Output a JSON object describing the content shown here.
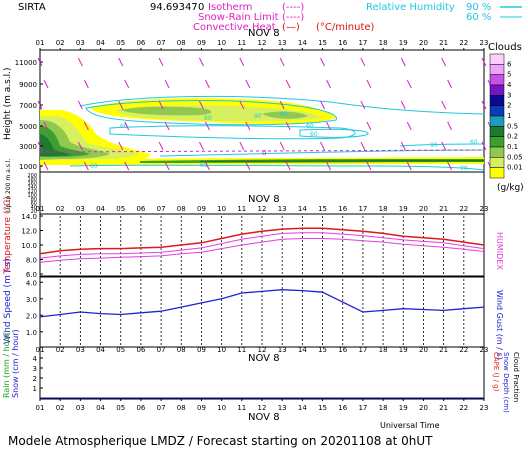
{
  "header": {
    "station": "SIRTA",
    "coords": "94.69347",
    "o_label": "0",
    "legend_left": [
      {
        "label": "Isotherm",
        "sample": "(----)",
        "color": "#e020c0"
      },
      {
        "label": "Snow-Rain Limit",
        "sample": "(----)",
        "color": "#e020c0"
      },
      {
        "label": "Convective Heat.",
        "sample": "(—)",
        "unit": "(°C/minute)",
        "color": "#e01010"
      }
    ],
    "legend_right": {
      "label": "Relative Humidity",
      "v1": "90 %",
      "v2": "60 %",
      "color": "#20c8e0"
    }
  },
  "hours": [
    "01",
    "02",
    "03",
    "04",
    "05",
    "06",
    "07",
    "08",
    "09",
    "10",
    "11",
    "12",
    "13",
    "14",
    "15",
    "16",
    "17",
    "18",
    "19",
    "20",
    "21",
    "22",
    "23"
  ],
  "date_label": "NOV  8",
  "top_panel": {
    "ylabel": "Height (m a.s.l.)",
    "yticks": [
      11000,
      9000,
      7000,
      5000,
      3000,
      1000
    ],
    "lower_ylabel": "Up to 200 m a.s.l.",
    "lower_yticks": [
      200,
      180,
      160,
      140,
      120,
      100,
      80,
      60,
      40,
      20
    ],
    "rh_labels": [
      "90",
      "90",
      "60",
      "60",
      "90",
      "60",
      "60",
      "90",
      "60",
      "60",
      "90"
    ],
    "isotherm_label": "0"
  },
  "clouds_legend": {
    "title": "Clouds",
    "unit": "(g/kg)",
    "levels": [
      "0.01",
      "0.05",
      "0.1",
      "0.2",
      "0.5",
      "1",
      "2",
      "3",
      "4",
      "5",
      "6"
    ],
    "colors": [
      "#ffff00",
      "#d7f060",
      "#90c850",
      "#3ca030",
      "#1e7a30",
      "#1a9dbd",
      "#0a3cb4",
      "#0a0a96",
      "#7814c8",
      "#c850e8",
      "#f0a0ff",
      "#ffd0ff"
    ]
  },
  "temp_panel": {
    "ylabel": "Temperature (°C)",
    "ylabel_right": "HUMIDEX",
    "yticks": [
      "14.0",
      "12.0",
      "10.0",
      "8.0",
      "6.0"
    ],
    "colors": {
      "temp": "#e01818",
      "humidex": "#e040e0"
    }
  },
  "wind_panel": {
    "ylabel": "Wind Speed (m / s)",
    "ylabel_right": "Wind Gust (m / s)",
    "yticks": [
      "4.0",
      "3.0",
      "2.0",
      "1.0"
    ],
    "color": "#2020d0"
  },
  "rain_panel": {
    "ylabel": "Rain (mm / hour)",
    "ylabel2": "Snow (cm / hour)",
    "ylabel_right": "CAPE (J / g)",
    "ylabel_right2": "Snow Depth (cm)",
    "ylabel_right3": "Cloud Fraction",
    "yticks": [
      "4",
      "3",
      "2",
      "1"
    ]
  },
  "footer": {
    "universal_time": "Universal Time",
    "title": "Modele Atmospherique LMDZ / Forecast starting on 20201108 at 0hUT"
  },
  "chart_data": [
    {
      "type": "line",
      "x": [
        "01",
        "02",
        "03",
        "04",
        "05",
        "06",
        "07",
        "08",
        "09",
        "10",
        "11",
        "12",
        "13",
        "14",
        "15",
        "16",
        "17",
        "18",
        "19",
        "20",
        "21",
        "22",
        "23"
      ],
      "ylabel": "Temperature (°C)",
      "ylim": [
        6,
        14
      ],
      "series": [
        {
          "values": [
            8.8,
            9.2,
            9.4,
            9.5,
            9.5,
            9.6,
            9.7,
            10.0,
            10.3,
            10.9,
            11.5,
            11.9,
            12.2,
            12.3,
            12.3,
            12.1,
            11.9,
            11.6,
            11.2,
            11.0,
            10.8,
            10.4,
            10.0
          ],
          "color": "#e01818"
        },
        {
          "values": [
            8.2,
            8.5,
            8.7,
            8.8,
            8.8,
            8.9,
            9.0,
            9.3,
            9.6,
            10.2,
            10.8,
            11.2,
            11.6,
            11.7,
            11.7,
            11.5,
            11.3,
            11.0,
            10.7,
            10.5,
            10.3,
            9.9,
            9.5
          ],
          "color": "#e040e0"
        },
        {
          "values": [
            7.6,
            7.9,
            8.1,
            8.2,
            8.3,
            8.4,
            8.5,
            8.8,
            9.0,
            9.5,
            10.0,
            10.4,
            10.8,
            10.9,
            10.9,
            10.8,
            10.6,
            10.4,
            10.1,
            9.9,
            9.7,
            9.4,
            9.1
          ],
          "color": "#e040e0"
        }
      ]
    },
    {
      "type": "line",
      "x": [
        "01",
        "02",
        "03",
        "04",
        "05",
        "06",
        "07",
        "08",
        "09",
        "10",
        "11",
        "12",
        "13",
        "14",
        "15",
        "16",
        "17",
        "18",
        "19",
        "20",
        "21",
        "22",
        "23"
      ],
      "ylabel": "Wind Speed (m / s)",
      "ylim": [
        0.2,
        4.2
      ],
      "series": [
        {
          "values": [
            1.9,
            2.05,
            2.2,
            2.1,
            2.05,
            2.15,
            2.25,
            2.5,
            2.75,
            3.0,
            3.35,
            3.45,
            3.55,
            3.5,
            3.4,
            2.8,
            2.2,
            2.3,
            2.4,
            2.35,
            2.3,
            2.4,
            2.5
          ],
          "color": "#2020d0"
        }
      ]
    },
    {
      "type": "line",
      "x": [
        "01",
        "02",
        "03",
        "04",
        "05",
        "06",
        "07",
        "08",
        "09",
        "10",
        "11",
        "12",
        "13",
        "14",
        "15",
        "16",
        "17",
        "18",
        "19",
        "20",
        "21",
        "22",
        "23"
      ],
      "ylabel": "Rain (mm / hour)",
      "ylim": [
        0,
        4.5
      ],
      "series": [
        {
          "values": [
            0,
            0,
            0,
            0,
            0,
            0,
            0,
            0,
            0,
            0,
            0,
            0,
            0,
            0,
            0,
            0,
            0,
            0,
            0,
            0,
            0,
            0,
            0
          ],
          "color": "#1010c0"
        }
      ]
    }
  ]
}
